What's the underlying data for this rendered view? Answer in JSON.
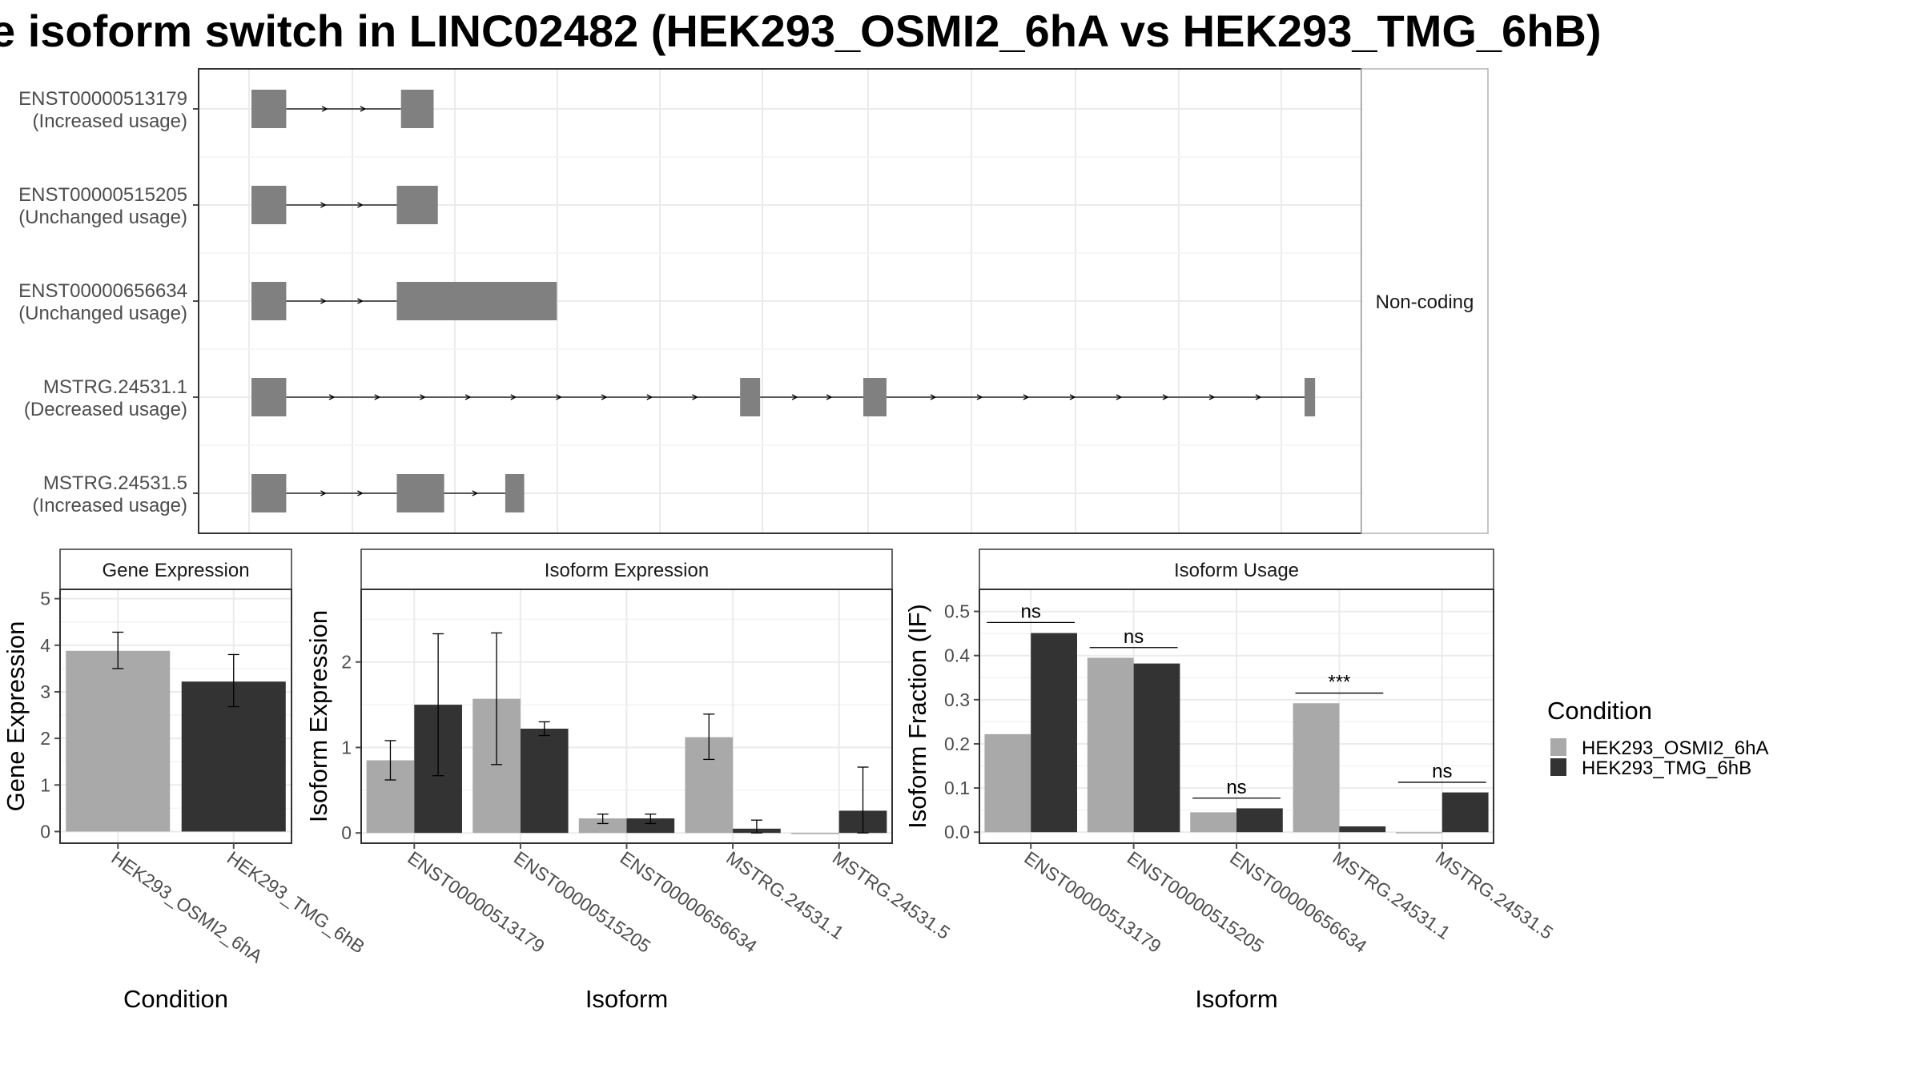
{
  "title": "e isoform switch in LINC02482 (HEK293_OSMI2_6hA vs HEK293_TMG_6hB)",
  "legend": {
    "title": "Condition",
    "items": [
      {
        "label": "HEK293_OSMI2_6hA",
        "color": "#a9a9a9"
      },
      {
        "label": "HEK293_TMG_6hB",
        "color": "#333333"
      }
    ]
  },
  "colors": {
    "exon": "#808080",
    "condA": "#a9a9a9",
    "condB": "#333333"
  },
  "chart_data": [
    {
      "type": "gene-structure",
      "strip_label": "Non-coding",
      "transcripts": [
        {
          "id": "ENST00000513179",
          "usage": "(Increased usage)",
          "exons": [
            [
              0,
              0.033
            ],
            [
              0.142,
              0.173
            ]
          ]
        },
        {
          "id": "ENST00000515205",
          "usage": "(Unchanged usage)",
          "exons": [
            [
              0,
              0.033
            ],
            [
              0.138,
              0.177
            ]
          ]
        },
        {
          "id": "ENST00000656634",
          "usage": "(Unchanged usage)",
          "exons": [
            [
              0,
              0.033
            ],
            [
              0.138,
              0.29
            ]
          ]
        },
        {
          "id": "MSTRG.24531.1",
          "usage": "(Decreased usage)",
          "exons": [
            [
              0,
              0.033
            ],
            [
              0.464,
              0.483
            ],
            [
              0.581,
              0.603
            ],
            [
              1.0,
              1.01
            ]
          ]
        },
        {
          "id": "MSTRG.24531.5",
          "usage": "(Increased usage)",
          "exons": [
            [
              0,
              0.033
            ],
            [
              0.138,
              0.183
            ],
            [
              0.241,
              0.259
            ]
          ]
        }
      ]
    },
    {
      "type": "bar",
      "strip_label": "Gene Expression",
      "xlabel": "Condition",
      "ylabel": "Gene Expression",
      "ylim": [
        -0.25,
        5.2
      ],
      "yticks": [
        0,
        1,
        2,
        3,
        4,
        5
      ],
      "categories": [
        "HEK293_OSMI2_6hA",
        "HEK293_TMG_6hB"
      ],
      "series": [
        {
          "name": "HEK293_OSMI2_6hA",
          "slot": 0,
          "values": [
            3.88,
            null
          ],
          "err_low": [
            3.5,
            null
          ],
          "err_high": [
            4.28,
            null
          ]
        },
        {
          "name": "HEK293_TMG_6hB",
          "slot": 1,
          "values": [
            null,
            3.22
          ],
          "err_low": [
            null,
            2.68
          ],
          "err_high": [
            null,
            3.8
          ]
        }
      ],
      "single_bar": true
    },
    {
      "type": "bar",
      "strip_label": "Isoform Expression",
      "xlabel": "Isoform",
      "ylabel": "Isoform Expression",
      "ylim": [
        -0.12,
        2.85
      ],
      "yticks": [
        0,
        1,
        2
      ],
      "categories": [
        "ENST00000513179",
        "ENST00000515205",
        "ENST00000656634",
        "MSTRG.24531.1",
        "MSTRG.24531.5"
      ],
      "series": [
        {
          "name": "HEK293_OSMI2_6hA",
          "values": [
            0.85,
            1.57,
            0.17,
            1.12,
            0.0
          ],
          "err_low": [
            0.62,
            0.8,
            0.11,
            0.86,
            0.0
          ],
          "err_high": [
            1.08,
            2.34,
            0.22,
            1.39,
            0.0
          ]
        },
        {
          "name": "HEK293_TMG_6hB",
          "values": [
            1.5,
            1.22,
            0.17,
            0.05,
            0.26
          ],
          "err_low": [
            0.67,
            1.14,
            0.11,
            0.0,
            0.0
          ],
          "err_high": [
            2.33,
            1.3,
            0.22,
            0.15,
            0.77
          ]
        }
      ]
    },
    {
      "type": "bar",
      "strip_label": "Isoform Usage",
      "xlabel": "Isoform",
      "ylabel": "Isoform Fraction (IF)",
      "ylim": [
        -0.025,
        0.55
      ],
      "yticks": [
        0.0,
        0.1,
        0.2,
        0.3,
        0.4,
        0.5
      ],
      "ytick_labels": [
        "0.0",
        "0.1",
        "0.2",
        "0.3",
        "0.4",
        "0.5"
      ],
      "categories": [
        "ENST00000513179",
        "ENST00000515205",
        "ENST00000656634",
        "MSTRG.24531.1",
        "MSTRG.24531.5"
      ],
      "series": [
        {
          "name": "HEK293_OSMI2_6hA",
          "values": [
            0.222,
            0.395,
            0.045,
            0.292,
            0.0
          ]
        },
        {
          "name": "HEK293_TMG_6hB",
          "values": [
            0.451,
            0.382,
            0.054,
            0.013,
            0.09
          ]
        }
      ],
      "significance": [
        {
          "label": "ns",
          "y": 0.475
        },
        {
          "label": "ns",
          "y": 0.418
        },
        {
          "label": "ns",
          "y": 0.077
        },
        {
          "label": "***",
          "y": 0.315
        },
        {
          "label": "ns",
          "y": 0.113
        }
      ]
    }
  ]
}
